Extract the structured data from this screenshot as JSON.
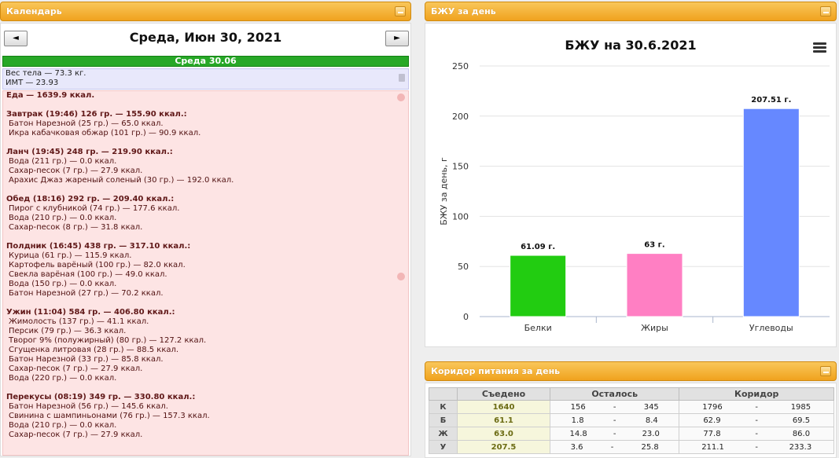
{
  "left_panel": {
    "title": "Календарь",
    "prev_label": "◄",
    "next_label": "►",
    "day_title": "Среда, Июн 30, 2021",
    "day_bar": "Среда 30.06",
    "weight": "Вес тела — 73.3 кг.",
    "bmi": "ИМТ — 23.93",
    "food_total": "Еда — 1639.9 ккал.",
    "meals": [
      {
        "title": "Завтрак (19:46) 126 гр. — 155.90 ккал.:",
        "items": [
          "Батон Нарезной (25 гр.) — 65.0 ккал.",
          "Икра кабачковая обжар (101 гр.) — 90.9 ккал."
        ]
      },
      {
        "title": "Ланч (19:45) 248 гр. — 219.90 ккал.:",
        "items": [
          "Вода (211 гр.) — 0.0 ккал.",
          "Сахар-песок (7 гр.) — 27.9 ккал.",
          "Арахис Джаз жареный соленый (30 гр.) — 192.0 ккал."
        ]
      },
      {
        "title": "Обед (18:16) 292 гр. — 209.40 ккал.:",
        "items": [
          "Пирог с клубникой (74 гр.) — 177.6 ккал.",
          "Вода (210 гр.) — 0.0 ккал.",
          "Сахар-песок (8 гр.) — 31.8 ккал."
        ]
      },
      {
        "title": "Полдник (16:45) 438 гр. — 317.10 ккал.:",
        "items": [
          "Курица (61 гр.) — 115.9 ккал.",
          "Картофель варёный (100 гр.) — 82.0 ккал.",
          "Свекла варёная (100 гр.) — 49.0 ккал.",
          "Вода (150 гр.) — 0.0 ккал.",
          "Батон Нарезной (27 гр.) — 70.2 ккал."
        ]
      },
      {
        "title": "Ужин (11:04) 584 гр. — 406.80 ккал.:",
        "items": [
          "Жимолость (137 гр.) — 41.1 ккал.",
          "Персик (79 гр.) — 36.3 ккал.",
          "Творог 9% (полужирный) (80 гр.) — 127.2 ккал.",
          "Сгущенка литровая (28 гр.) — 88.5 ккал.",
          "Батон Нарезной (33 гр.) — 85.8 ккал.",
          "Сахар-песок (7 гр.) — 27.9 ккал.",
          "Вода (220 гр.) — 0.0 ккал."
        ]
      },
      {
        "title": "Перекусы (08:19) 349 гр. — 330.80 ккал.:",
        "items": [
          "Батон Нарезной (56 гр.) — 145.6 ккал.",
          "Свинина с шампиньонами (76 гр.) — 157.3 ккал.",
          "Вода (210 гр.) — 0.0 ккал.",
          "Сахар-песок (7 гр.) — 27.9 ккал."
        ]
      }
    ]
  },
  "chart_panel": {
    "title": "БЖУ за день"
  },
  "chart_data": {
    "type": "bar",
    "title": "БЖУ на 30.6.2021",
    "ylabel": "БЖУ за день, г",
    "xlabel": "",
    "ylim": [
      0,
      250
    ],
    "yticks": [
      0,
      50,
      100,
      150,
      200,
      250
    ],
    "categories": [
      "Белки",
      "Жиры",
      "Углеводы"
    ],
    "values": [
      61.09,
      63,
      207.51
    ],
    "data_labels": [
      "61.09 г.",
      "63 г.",
      "207.51 г."
    ],
    "colors": [
      "#22cc11",
      "#ff7fc3",
      "#6688ff"
    ],
    "grid": true
  },
  "corridor_panel": {
    "title": "Коридор питания за день",
    "headers": [
      "",
      "Съедено",
      "Осталось",
      "Коридор"
    ],
    "rows": [
      {
        "label": "К",
        "eaten": "1640",
        "left_min": "156",
        "sep1": "-",
        "left_max": "345",
        "c_min": "1796",
        "sep2": "-",
        "c_max": "1985"
      },
      {
        "label": "Б",
        "eaten": "61.1",
        "left_min": "1.8",
        "sep1": "-",
        "left_max": "8.4",
        "c_min": "62.9",
        "sep2": "-",
        "c_max": "69.5"
      },
      {
        "label": "Ж",
        "eaten": "63.0",
        "left_min": "14.8",
        "sep1": "-",
        "left_max": "23.0",
        "c_min": "77.8",
        "sep2": "-",
        "c_max": "86.0"
      },
      {
        "label": "У",
        "eaten": "207.5",
        "left_min": "3.6",
        "sep1": "-",
        "left_max": "25.8",
        "c_min": "211.1",
        "sep2": "-",
        "c_max": "233.3"
      }
    ]
  }
}
